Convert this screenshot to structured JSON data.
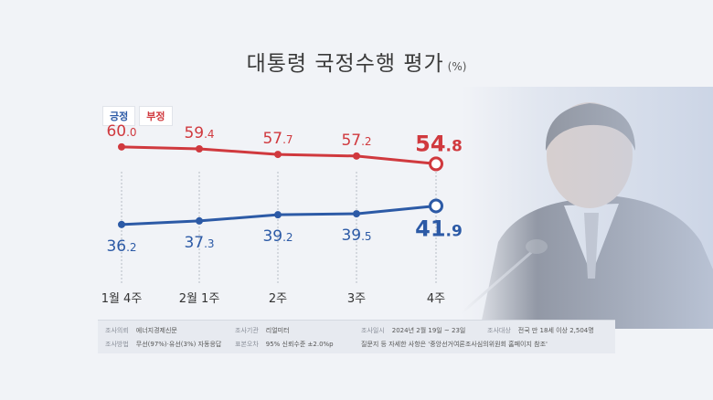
{
  "title": "대통령 국정수행 평가",
  "title_unit": "(%)",
  "legend": {
    "positive": "긍정",
    "negative": "부정"
  },
  "colors": {
    "positive": "#2c5aa6",
    "negative": "#d0393e",
    "guide": "#b7bcc6"
  },
  "chart_data": {
    "type": "line",
    "categories": [
      "1월 4주",
      "2월 1주",
      "2주",
      "3주",
      "4주"
    ],
    "series": [
      {
        "name": "긍정",
        "values": [
          36.2,
          37.3,
          39.2,
          39.5,
          41.9
        ]
      },
      {
        "name": "부정",
        "values": [
          60.0,
          59.4,
          57.7,
          57.2,
          54.8
        ]
      }
    ],
    "value_labels": {
      "긍정": [
        "36.2",
        "37.3",
        "39.2",
        "39.5",
        "41.9"
      ],
      "부정": [
        "60.0",
        "59.4",
        "57.7",
        "57.2",
        "54.8"
      ]
    },
    "highlight_last": true,
    "legend_position": "top-left",
    "grid": false
  },
  "footer": {
    "client_label": "조사의뢰",
    "client_value": "에너지경제신문",
    "agency_label": "조사기관",
    "agency_value": "리얼미터",
    "date_label": "조사일시",
    "date_value": "2024년 2월 19일 ~ 23일",
    "target_label": "조사대상",
    "target_value": "전국 만 18세 이상 2,504명",
    "method_label": "조사방법",
    "method_value": "무선(97%)·유선(3%) 자동응답",
    "error_label": "표본오차",
    "error_value": "95% 신뢰수준 ±2.0%p",
    "note": "질문지 등 자세한 사항은 '중앙선거여론조사심의위원회 홈페이지 참조'"
  }
}
